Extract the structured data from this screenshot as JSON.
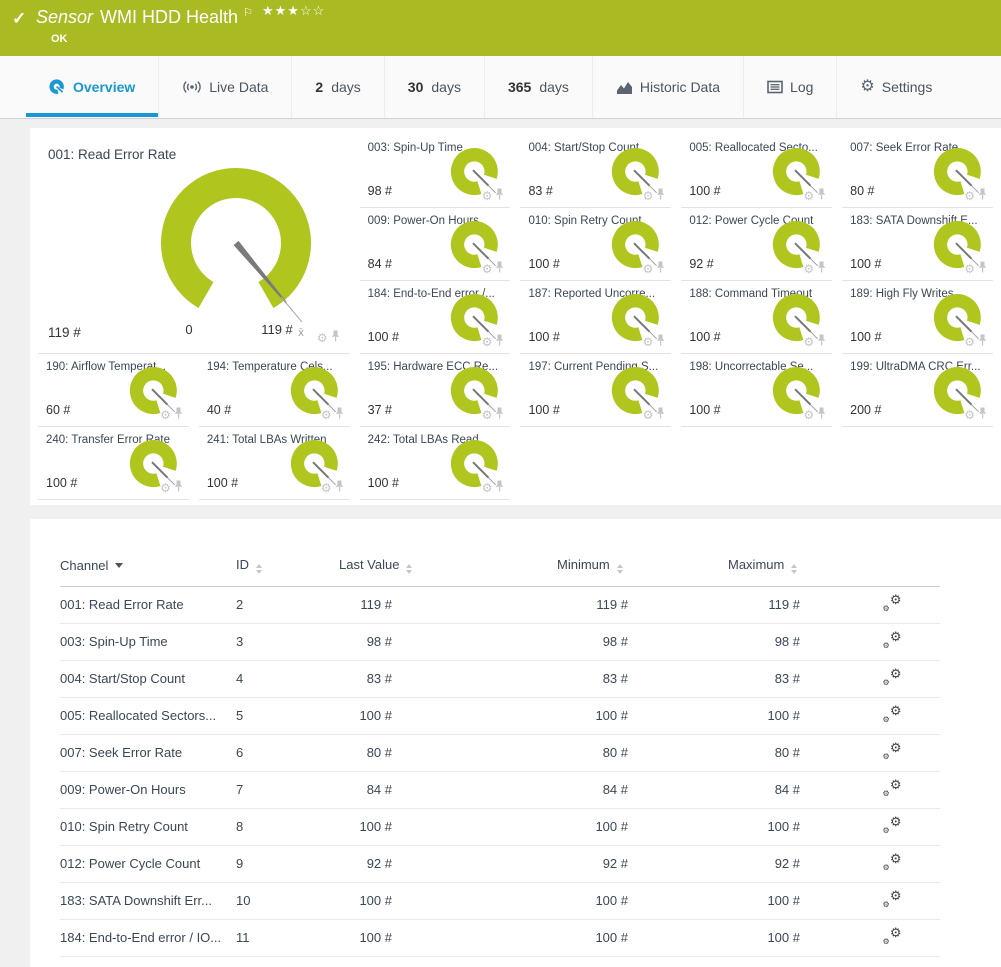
{
  "colors": {
    "header_green": "#a9ba23",
    "gauge_green": "#b0c61e",
    "accent_blue": "#1a97d4"
  },
  "header": {
    "check_glyph": "✓",
    "title_prefix": "Sensor",
    "title": "WMI HDD Health",
    "flag_glyph": "⚐",
    "stars_text": "★★★☆☆",
    "status": "OK"
  },
  "tabs": [
    {
      "id": "overview",
      "icon": "gauge-icon",
      "label": "Overview",
      "active": true
    },
    {
      "id": "live-data",
      "icon": "broadcast-icon",
      "label": "Live Data"
    },
    {
      "id": "2-days",
      "bold": "2",
      "label": "days"
    },
    {
      "id": "30-days",
      "bold": "30",
      "label": "days"
    },
    {
      "id": "365-days",
      "bold": "365",
      "label": "days"
    },
    {
      "id": "historic-data",
      "icon": "chart-icon",
      "label": "Historic Data"
    },
    {
      "id": "log",
      "icon": "log-icon",
      "label": "Log"
    },
    {
      "id": "settings",
      "icon": "gear-icon",
      "label": "Settings"
    }
  ],
  "main_gauge": {
    "title": "001: Read Error Rate",
    "value": "119 #",
    "scale_min": "0",
    "scale_max": "119 #",
    "mean_marker": "x̄"
  },
  "small_gauges": [
    {
      "title": "003: Spin-Up Time",
      "value": "98 #"
    },
    {
      "title": "004: Start/Stop Count",
      "value": "83 #"
    },
    {
      "title": "005: Reallocated Secto...",
      "value": "100 #"
    },
    {
      "title": "007: Seek Error Rate",
      "value": "80 #"
    },
    {
      "title": "009: Power-On Hours",
      "value": "84 #"
    },
    {
      "title": "010: Spin Retry Count",
      "value": "100 #"
    },
    {
      "title": "012: Power Cycle Count",
      "value": "92 #"
    },
    {
      "title": "183: SATA Downshift E...",
      "value": "100 #"
    },
    {
      "title": "184: End-to-End error /...",
      "value": "100 #"
    },
    {
      "title": "187: Reported Uncorre...",
      "value": "100 #"
    },
    {
      "title": "188: Command Timeout",
      "value": "100 #"
    },
    {
      "title": "189: High Fly Writes",
      "value": "100 #"
    },
    {
      "title": "190: Airflow Temperat...",
      "value": "60 #"
    },
    {
      "title": "194: Temperature Cels...",
      "value": "40 #"
    },
    {
      "title": "195: Hardware ECC Re...",
      "value": "37 #"
    },
    {
      "title": "197: Current Pending S...",
      "value": "100 #"
    },
    {
      "title": "198: Uncorrectable Se...",
      "value": "100 #"
    },
    {
      "title": "199: UltraDMA CRC Err...",
      "value": "200 #"
    },
    {
      "title": "240: Transfer Error Rate",
      "value": "100 #"
    },
    {
      "title": "241: Total LBAs Written",
      "value": "100 #"
    },
    {
      "title": "242: Total LBAs Read",
      "value": "100 #"
    }
  ],
  "table": {
    "columns": [
      "Channel",
      "ID",
      "Last Value",
      "Minimum",
      "Maximum"
    ],
    "rows": [
      {
        "channel": "001: Read Error Rate",
        "id": "2",
        "last": "119 #",
        "min": "119 #",
        "max": "119 #"
      },
      {
        "channel": "003: Spin-Up Time",
        "id": "3",
        "last": "98 #",
        "min": "98 #",
        "max": "98 #"
      },
      {
        "channel": "004: Start/Stop Count",
        "id": "4",
        "last": "83 #",
        "min": "83 #",
        "max": "83 #"
      },
      {
        "channel": "005: Reallocated Sectors...",
        "id": "5",
        "last": "100 #",
        "min": "100 #",
        "max": "100 #"
      },
      {
        "channel": "007: Seek Error Rate",
        "id": "6",
        "last": "80 #",
        "min": "80 #",
        "max": "80 #"
      },
      {
        "channel": "009: Power-On Hours",
        "id": "7",
        "last": "84 #",
        "min": "84 #",
        "max": "84 #"
      },
      {
        "channel": "010: Spin Retry Count",
        "id": "8",
        "last": "100 #",
        "min": "100 #",
        "max": "100 #"
      },
      {
        "channel": "012: Power Cycle Count",
        "id": "9",
        "last": "92 #",
        "min": "92 #",
        "max": "92 #"
      },
      {
        "channel": "183: SATA Downshift Err...",
        "id": "10",
        "last": "100 #",
        "min": "100 #",
        "max": "100 #"
      },
      {
        "channel": "184: End-to-End error / IO...",
        "id": "11",
        "last": "100 #",
        "min": "100 #",
        "max": "100 #"
      }
    ]
  }
}
